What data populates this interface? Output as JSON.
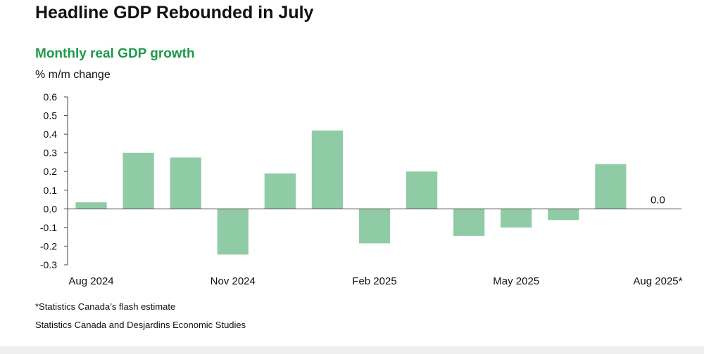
{
  "title": "Headline GDP Rebounded in July",
  "footnote": "*Statistics Canada’s flash estimate",
  "source": "Statistics Canada and Desjardins Economic Studies",
  "colors": {
    "bar": "#8fcca6",
    "subtitle": "#1e9a4a",
    "axis": "#444444"
  },
  "chart_data": {
    "type": "bar",
    "title": "Monthly real GDP growth",
    "ylabel": "% m/m change",
    "xlabel": "",
    "ylim": [
      -0.3,
      0.6
    ],
    "yticks": [
      0.6,
      0.5,
      0.4,
      0.3,
      0.2,
      0.1,
      0.0,
      -0.1,
      -0.2,
      -0.3
    ],
    "ytick_labels": [
      "0.6",
      "0.5",
      "0.4",
      "0.3",
      "0.2",
      "0.1",
      "0.0",
      "-0.1",
      "-0.2",
      "-0.3"
    ],
    "categories": [
      "Aug 2024",
      "Sep 2024",
      "Oct 2024",
      "Nov 2024",
      "Dec 2024",
      "Jan 2025",
      "Feb 2025",
      "Mar 2025",
      "Apr 2025",
      "May 2025",
      "Jun 2025",
      "Jul 2025",
      "Aug 2025*"
    ],
    "visible_xtick_labels": [
      "Aug 2024",
      "Nov 2024",
      "Feb 2025",
      "May 2025",
      "Aug 2025*"
    ],
    "values": [
      0.035,
      0.3,
      0.275,
      -0.245,
      0.19,
      0.42,
      -0.185,
      0.2,
      -0.145,
      -0.1,
      -0.06,
      0.24,
      0.0
    ],
    "data_labels": [
      {
        "category": "Aug 2025*",
        "text": "0.0"
      }
    ],
    "grid": false,
    "legend": "none"
  }
}
